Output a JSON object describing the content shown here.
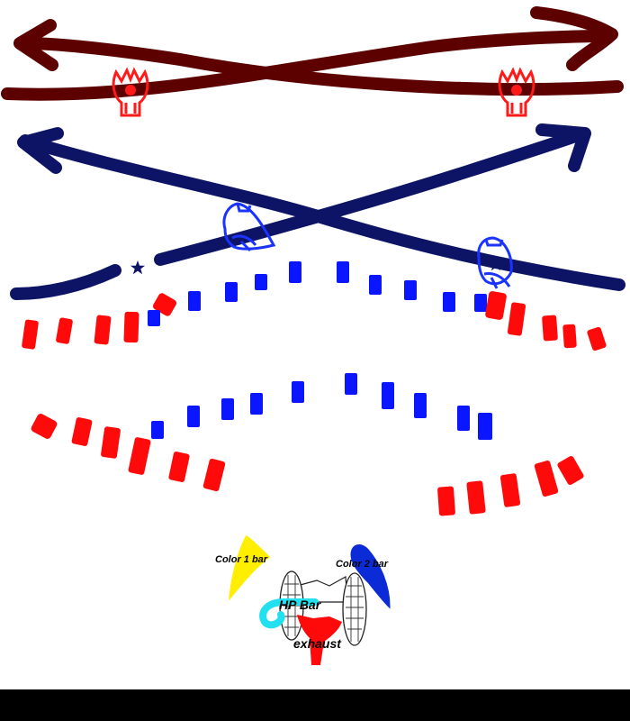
{
  "colors": {
    "background": "#ffffff",
    "dark_red_path": "#5c0000",
    "navy_path": "#0d1466",
    "enemy_outline_red": "#ff1a1a",
    "enemy_outline_blue": "#1a33ff",
    "bullet_red": "#ff0a0a",
    "bullet_blue": "#0a16ff",
    "star": "#0d1466",
    "color1_bar": "#ffee00",
    "color2_bar": "#0a2bd6",
    "hp_bar": "#22e0f0",
    "exhaust": "#ff0a0a",
    "bottom_bar": "#000000"
  },
  "icons": {
    "top_enemies": "red-walker-icon",
    "mid_enemies": "blue-walker-icon",
    "markers": "star-icon",
    "player": "player-ship-icon"
  },
  "labels": {
    "color1": "Color 1 bar",
    "color2": "Color 2 bar",
    "hp": "HP Bar",
    "exhaust": "exhaust"
  }
}
